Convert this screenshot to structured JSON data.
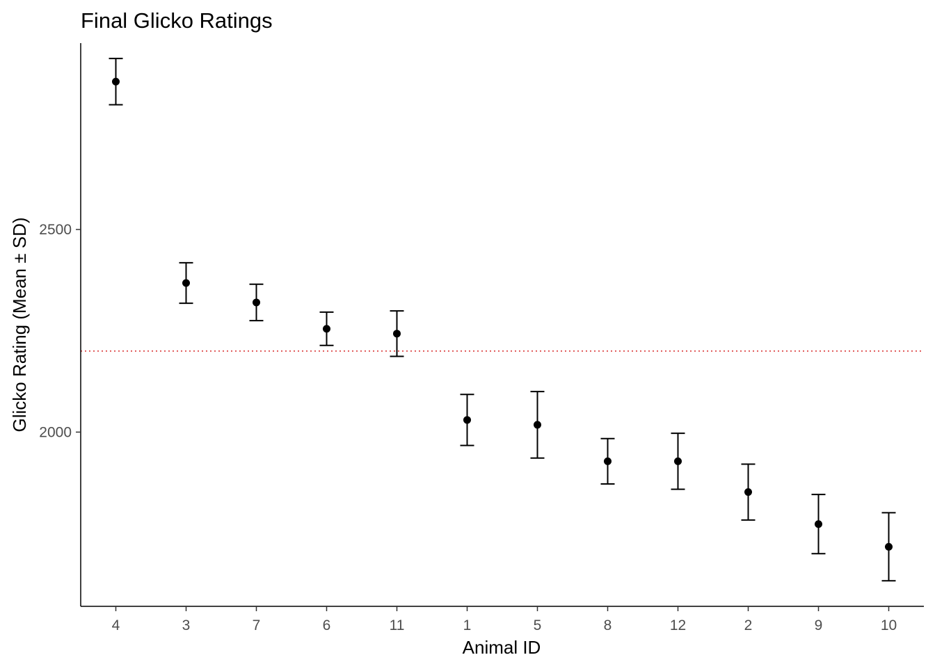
{
  "chart_data": {
    "type": "scatter",
    "title": "Final Glicko Ratings",
    "xlabel": "Animal ID",
    "ylabel": "Glicko Rating (Mean ± SD)",
    "categories": [
      "4",
      "3",
      "7",
      "6",
      "11",
      "1",
      "5",
      "8",
      "12",
      "2",
      "9",
      "10"
    ],
    "mean": [
      2865,
      2368,
      2320,
      2255,
      2243,
      2030,
      2018,
      1928,
      1928,
      1852,
      1773,
      1717
    ],
    "sd": [
      57,
      50,
      45,
      41,
      56,
      63,
      82,
      56,
      69,
      69,
      73,
      84
    ],
    "ylim": [
      1570,
      2960
    ],
    "yticks": [
      2000,
      2500
    ],
    "reference_line": {
      "y": 2200,
      "color": "#d62728",
      "style": "dotted"
    },
    "grid": false,
    "legend": "none",
    "colors": {
      "points": "#000000",
      "reference": "#d62728"
    }
  }
}
